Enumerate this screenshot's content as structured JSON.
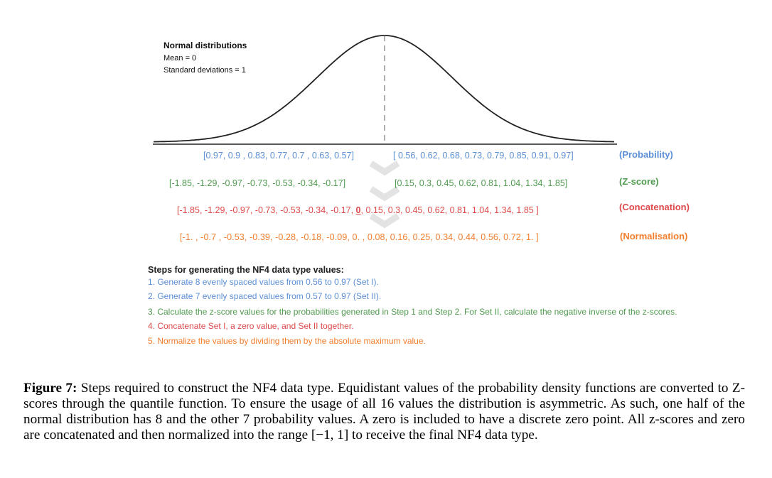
{
  "legend": {
    "title": "Normal distributions",
    "mean": "Mean = 0",
    "std": "Standard deviations = 1"
  },
  "rows": {
    "probability": {
      "left": "[0.97, 0.9 , 0.83, 0.77, 0.7 , 0.63, 0.57]",
      "right": "[ 0.56, 0.62, 0.68, 0.73, 0.79, 0.85, 0.91, 0.97]",
      "tag": "(Probability)"
    },
    "zscore": {
      "left": "[-1.85, -1.29, -0.97, -0.73, -0.53, -0.34, -0.17]",
      "right": "[0.15, 0.3, 0.45, 0.62, 0.81, 1.04, 1.34, 1.85]",
      "tag": "(Z-score)"
    },
    "concat": {
      "before": "[-1.85, -1.29, -0.97, -0.73, -0.53, -0.34, -0.17,",
      "zero": "0",
      "after": ", 0.15, 0.3, 0.45, 0.62, 0.81, 1.04, 1.34, 1.85 ]",
      "tag": "(Concatenation)"
    },
    "norm": {
      "values": "[-1.  , -0.7 , -0.53, -0.39, -0.28, -0.18, -0.09, 0.  ,  0.08, 0.16, 0.25, 0.34, 0.44, 0.56, 0.72, 1. ]",
      "tag": "(Normalisation)"
    }
  },
  "steps": {
    "title": "Steps for generating the NF4 data type values:",
    "s1": "1. Generate 8 evenly spaced values from 0.56 to 0.97 (Set I).",
    "s2": "2. Generate 7 evenly spaced values from 0.57 to 0.97 (Set II).",
    "s3": "3. Calculate the z-score values for the probabilities generated in Step 1 and Step 2. For Set II, calculate the negative inverse of the z-scores.",
    "s4": "4. Concatenate Set I, a zero value, and Set II together.",
    "s5": "5. Normalize the values by dividing them by the absolute maximum value."
  },
  "caption": {
    "label": "Figure 7:",
    "text": " Steps required to construct the NF4 data type. Equidistant values of the probability density functions are converted to Z-scores through the quantile function. To ensure the usage of all 16 values the distribution is asymmetric. As such, one half of the normal distribution has 8 and the other 7 probability values. A zero is included to have a discrete zero point. All z-scores and zero are concatenated and then normalized into the range [−1, 1] to receive the final NF4 data type."
  },
  "colors": {
    "blue": "#5b8fd6",
    "green": "#4f9b4f",
    "red": "#de4a4a",
    "orange": "#f27d2c"
  }
}
